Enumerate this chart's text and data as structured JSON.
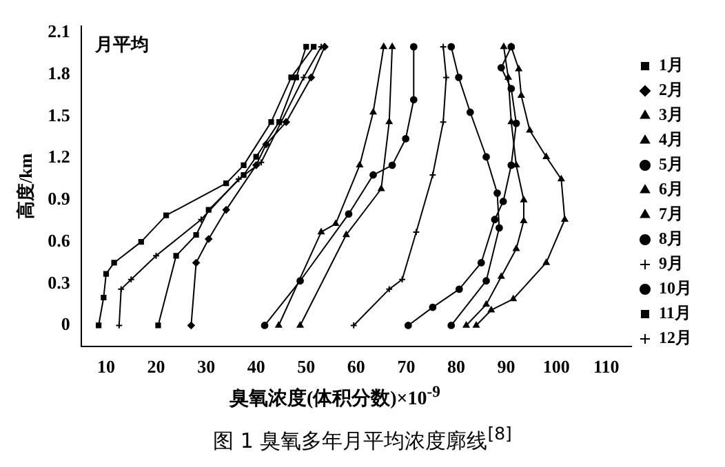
{
  "chart_data": {
    "type": "line",
    "title": "图 1 臭氧多年月平均浓度廓线$^{[8]}$",
    "xlabel": "臭氧浓度(体积分数)×10$^{-9}$",
    "ylabel": "高度/km",
    "annotations": [
      "月平均"
    ],
    "xlim": [
      5,
      115
    ],
    "xticks": [
      10,
      20,
      30,
      40,
      50,
      60,
      70,
      80,
      90,
      100,
      110
    ],
    "ylim": [
      -0.15,
      2.15
    ],
    "yticks": [
      0,
      0.3,
      0.6,
      0.9,
      1.2,
      1.5,
      1.8,
      2.1
    ],
    "grid": false,
    "legend": "right",
    "line_style": "solid",
    "series": [
      {
        "name": "1月",
        "color": "#000000",
        "marker": "square",
        "x": [
          8.5,
          9.5,
          10,
          11.6,
          17,
          22,
          34,
          37.5,
          43,
          47,
          51.5
        ],
        "values": [
          0,
          0.2,
          0.37,
          0.45,
          0.6,
          0.79,
          1.02,
          1.15,
          1.46,
          1.78,
          2.0
        ]
      },
      {
        "name": "2月",
        "color": "#000000",
        "marker": "diamond",
        "x": [
          27,
          28,
          30.5,
          34,
          40,
          42,
          46,
          51,
          53.7
        ],
        "values": [
          0,
          0.45,
          0.62,
          0.83,
          1.15,
          1.3,
          1.46,
          1.78,
          2.0
        ]
      },
      {
        "name": "3月",
        "color": "#000000",
        "marker": "triangle",
        "x": [
          44.5,
          53,
          55.9,
          60.7,
          63.4,
          65.5
        ],
        "values": [
          0,
          0.67,
          0.73,
          1.15,
          1.53,
          2.0
        ]
      },
      {
        "name": "4月",
        "color": "#000000",
        "marker": "triangle",
        "x": [
          48.8,
          58,
          65,
          66.6,
          67.2
        ],
        "values": [
          0,
          0.65,
          0.98,
          1.46,
          2.0
        ]
      },
      {
        "name": "5月",
        "color": "#000000",
        "marker": "circle",
        "x": [
          70.4,
          75.3,
          80.6,
          85,
          87.7,
          89.4,
          91,
          92,
          91,
          89,
          91
        ],
        "values": [
          0,
          0.13,
          0.26,
          0.45,
          0.76,
          0.89,
          1.15,
          1.45,
          1.7,
          1.85,
          2.0
        ]
      },
      {
        "name": "6月",
        "color": "#000000",
        "marker": "triangle",
        "x": [
          82,
          86,
          89,
          92,
          93.5,
          93.5,
          92,
          91,
          90.4,
          89.5
        ],
        "values": [
          0,
          0.15,
          0.35,
          0.55,
          0.75,
          0.9,
          1.15,
          1.46,
          1.78,
          2.0
        ]
      },
      {
        "name": "7月",
        "color": "#000000",
        "marker": "triangle",
        "x": [
          84,
          87,
          91.4,
          98,
          101.7,
          101,
          98,
          94.7,
          93,
          92.5,
          91
        ],
        "values": [
          0,
          0.11,
          0.19,
          0.45,
          0.76,
          1.05,
          1.21,
          1.4,
          1.65,
          1.84,
          2.0
        ]
      },
      {
        "name": "8月",
        "color": "#000000",
        "marker": "circle",
        "x": [
          79,
          86,
          88.6,
          88.2,
          86,
          82.8,
          80.5,
          79
        ],
        "values": [
          0,
          0.32,
          0.7,
          0.95,
          1.21,
          1.53,
          1.78,
          2.0
        ]
      },
      {
        "name": "9月",
        "color": "#000000",
        "marker": "cross",
        "x": [
          59.5,
          66.6,
          69.2,
          72,
          75.3,
          77.4,
          78,
          77.4
        ],
        "values": [
          0,
          0.26,
          0.33,
          0.67,
          1.08,
          1.46,
          1.78,
          2.0
        ]
      },
      {
        "name": "10月",
        "color": "#000000",
        "marker": "circle",
        "x": [
          41.7,
          48.8,
          58.5,
          63.4,
          67.2,
          69.9,
          71.5,
          71.5
        ],
        "values": [
          0,
          0.32,
          0.8,
          1.08,
          1.15,
          1.34,
          1.62,
          2.0
        ]
      },
      {
        "name": "11月",
        "color": "#000000",
        "marker": "square",
        "x": [
          20.4,
          24,
          28,
          30.5,
          37.5,
          40,
          44.6,
          48,
          50
        ],
        "values": [
          0,
          0.5,
          0.65,
          0.83,
          1.08,
          1.21,
          1.46,
          1.78,
          2.0
        ]
      },
      {
        "name": "12月",
        "color": "#000000",
        "marker": "cross",
        "x": [
          12.6,
          13,
          15,
          20,
          29,
          36.5,
          41,
          45,
          49.5,
          53
        ],
        "values": [
          0,
          0.26,
          0.33,
          0.5,
          0.76,
          1.05,
          1.17,
          1.46,
          1.78,
          2.0
        ]
      }
    ]
  }
}
